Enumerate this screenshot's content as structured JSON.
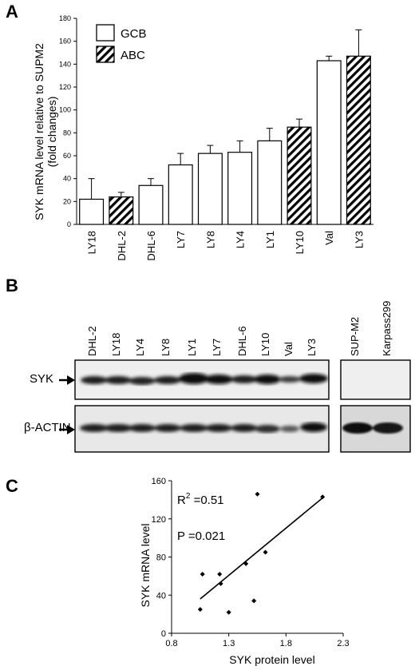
{
  "panels": {
    "a": {
      "letter": "A"
    },
    "b": {
      "letter": "B"
    },
    "c": {
      "letter": "C"
    }
  },
  "chart_data": [
    {
      "type": "bar",
      "panel": "A",
      "categories": [
        "LY18",
        "DHL-2",
        "DHL-6",
        "LY7",
        "LY8",
        "LY4",
        "LY1",
        "LY10",
        "Val",
        "LY3"
      ],
      "values": [
        22,
        24,
        34,
        52,
        62,
        63,
        73,
        85,
        143,
        147
      ],
      "errors": [
        18,
        4,
        6,
        10,
        7,
        10,
        11,
        7,
        4,
        23
      ],
      "groups": [
        "GCB",
        "ABC",
        "GCB",
        "GCB",
        "GCB",
        "GCB",
        "GCB",
        "ABC",
        "GCB",
        "ABC"
      ],
      "legend": [
        {
          "name": "GCB",
          "pattern": "open"
        },
        {
          "name": "ABC",
          "pattern": "hatched"
        }
      ],
      "ylabel_line1": "SYK mRNA level relative to SUPM2",
      "ylabel_line2": "(fold changes)",
      "ylim": [
        0,
        180
      ],
      "yticks": [
        0,
        20,
        40,
        60,
        80,
        100,
        120,
        140,
        160,
        180
      ],
      "legend_position": "top-left"
    },
    {
      "type": "scatter",
      "panel": "C",
      "points": [
        {
          "x": 1.05,
          "y": 25
        },
        {
          "x": 1.07,
          "y": 62
        },
        {
          "x": 1.22,
          "y": 62
        },
        {
          "x": 1.23,
          "y": 52
        },
        {
          "x": 1.3,
          "y": 22
        },
        {
          "x": 1.45,
          "y": 73
        },
        {
          "x": 1.52,
          "y": 34
        },
        {
          "x": 1.55,
          "y": 146
        },
        {
          "x": 1.62,
          "y": 85
        },
        {
          "x": 2.12,
          "y": 143
        }
      ],
      "fit_line": {
        "x0": 1.05,
        "y0": 36,
        "x1": 2.12,
        "y1": 142
      },
      "xlabel": "SYK protein level",
      "ylabel": "SYK mRNA level",
      "xlim": [
        0.8,
        2.3
      ],
      "ylim": [
        0,
        160
      ],
      "xticks": [
        0.8,
        1.3,
        1.8,
        2.3
      ],
      "yticks": [
        0,
        40,
        80,
        120,
        160
      ],
      "annotations": {
        "r2_prefix": "R",
        "r2_sup": "2",
        "r2_value": " =0.51",
        "p_text": "P =0.021"
      }
    }
  ],
  "blot": {
    "main_lanes": [
      "DHL-2",
      "LY18",
      "LY4",
      "LY8",
      "LY1",
      "LY7",
      "DHL-6",
      "LY10",
      "Val",
      "LY3"
    ],
    "ctrl_lanes": [
      "SUP-M2",
      "Karpass299"
    ],
    "rows": [
      "SYK",
      "β-ACTIN"
    ]
  },
  "colors": {
    "ink": "#000000",
    "background": "#ffffff",
    "blot_bg": "#ececec"
  }
}
